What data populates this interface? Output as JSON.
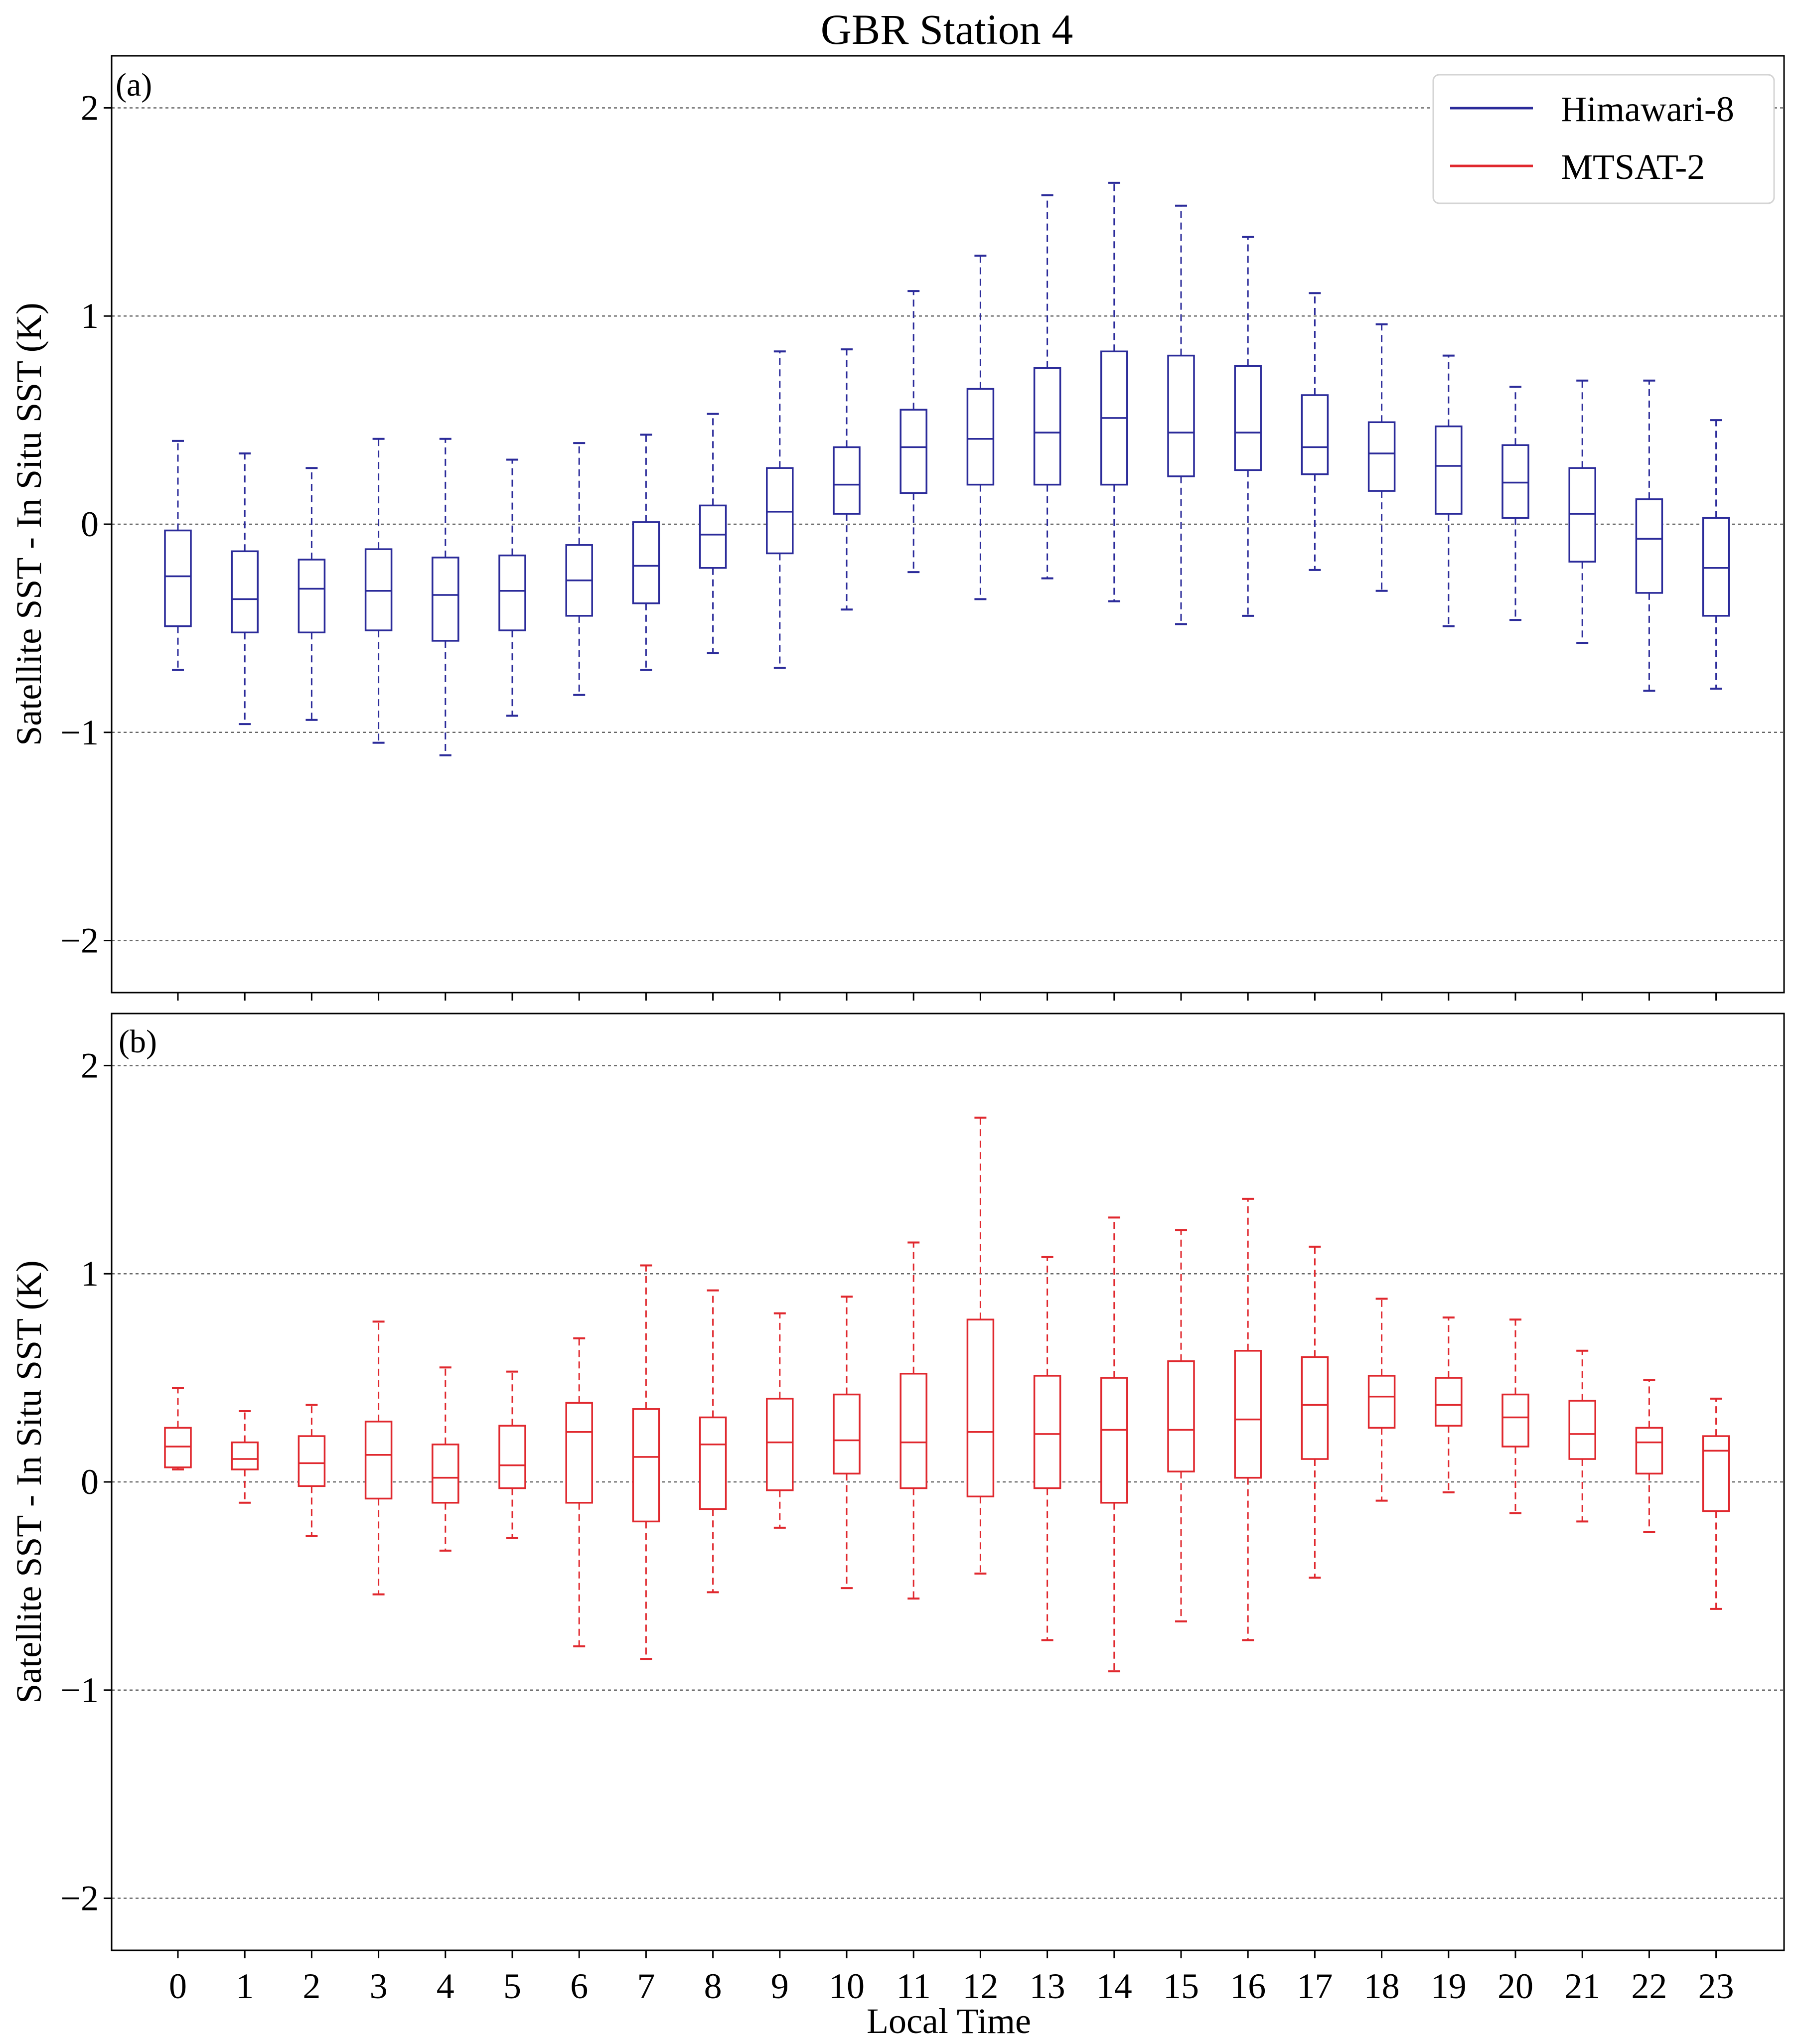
{
  "chart_data": {
    "type": "boxplot",
    "title": "GBR Station 4",
    "xlabel": "Local Time",
    "ylabel": "Satellite SST - In Situ SST (K)",
    "ylim": [
      -2.25,
      2.25
    ],
    "yticks": [
      -2,
      -1,
      0,
      1,
      2
    ],
    "ytick_labels": [
      "−2",
      "−1",
      "0",
      "1",
      "2"
    ],
    "grid": "horizontal dashed",
    "categories": [
      "0",
      "1",
      "2",
      "3",
      "4",
      "5",
      "6",
      "7",
      "8",
      "9",
      "10",
      "11",
      "12",
      "13",
      "14",
      "15",
      "16",
      "17",
      "18",
      "19",
      "20",
      "21",
      "22",
      "23"
    ],
    "legend": {
      "placement": "top-right",
      "entries": [
        {
          "name": "Himawari-8",
          "color": "#2b2b9a"
        },
        {
          "name": "MTSAT-2",
          "color": "#e0282e"
        }
      ]
    },
    "panels": [
      {
        "label": "(a)",
        "series": "Himawari-8",
        "color": "#2b2b9a",
        "boxes": [
          {
            "whislo": -0.7,
            "q1": -0.49,
            "med": -0.25,
            "q3": -0.03,
            "whishi": 0.4
          },
          {
            "whislo": -0.96,
            "q1": -0.52,
            "med": -0.36,
            "q3": -0.13,
            "whishi": 0.34
          },
          {
            "whislo": -0.94,
            "q1": -0.52,
            "med": -0.31,
            "q3": -0.17,
            "whishi": 0.27
          },
          {
            "whislo": -1.05,
            "q1": -0.51,
            "med": -0.32,
            "q3": -0.12,
            "whishi": 0.41
          },
          {
            "whislo": -1.11,
            "q1": -0.56,
            "med": -0.34,
            "q3": -0.16,
            "whishi": 0.41
          },
          {
            "whislo": -0.92,
            "q1": -0.51,
            "med": -0.32,
            "q3": -0.15,
            "whishi": 0.31
          },
          {
            "whislo": -0.82,
            "q1": -0.44,
            "med": -0.27,
            "q3": -0.1,
            "whishi": 0.39
          },
          {
            "whislo": -0.7,
            "q1": -0.38,
            "med": -0.2,
            "q3": 0.01,
            "whishi": 0.43
          },
          {
            "whislo": -0.62,
            "q1": -0.21,
            "med": -0.05,
            "q3": 0.09,
            "whishi": 0.53
          },
          {
            "whislo": -0.69,
            "q1": -0.14,
            "med": 0.06,
            "q3": 0.27,
            "whishi": 0.83
          },
          {
            "whislo": -0.41,
            "q1": 0.05,
            "med": 0.19,
            "q3": 0.37,
            "whishi": 0.84
          },
          {
            "whislo": -0.23,
            "q1": 0.15,
            "med": 0.37,
            "q3": 0.55,
            "whishi": 1.12
          },
          {
            "whislo": -0.36,
            "q1": 0.19,
            "med": 0.41,
            "q3": 0.65,
            "whishi": 1.29
          },
          {
            "whislo": -0.26,
            "q1": 0.19,
            "med": 0.44,
            "q3": 0.75,
            "whishi": 1.58
          },
          {
            "whislo": -0.37,
            "q1": 0.19,
            "med": 0.51,
            "q3": 0.83,
            "whishi": 1.64
          },
          {
            "whislo": -0.48,
            "q1": 0.23,
            "med": 0.44,
            "q3": 0.81,
            "whishi": 1.53
          },
          {
            "whislo": -0.44,
            "q1": 0.26,
            "med": 0.44,
            "q3": 0.76,
            "whishi": 1.38
          },
          {
            "whislo": -0.22,
            "q1": 0.24,
            "med": 0.37,
            "q3": 0.62,
            "whishi": 1.11
          },
          {
            "whislo": -0.32,
            "q1": 0.16,
            "med": 0.34,
            "q3": 0.49,
            "whishi": 0.96
          },
          {
            "whislo": -0.49,
            "q1": 0.05,
            "med": 0.28,
            "q3": 0.47,
            "whishi": 0.81
          },
          {
            "whislo": -0.46,
            "q1": 0.03,
            "med": 0.2,
            "q3": 0.38,
            "whishi": 0.66
          },
          {
            "whislo": -0.57,
            "q1": -0.18,
            "med": 0.05,
            "q3": 0.27,
            "whishi": 0.69
          },
          {
            "whislo": -0.8,
            "q1": -0.33,
            "med": -0.07,
            "q3": 0.12,
            "whishi": 0.69
          },
          {
            "whislo": -0.79,
            "q1": -0.44,
            "med": -0.21,
            "q3": 0.03,
            "whishi": 0.5
          }
        ]
      },
      {
        "label": "(b)",
        "series": "MTSAT-2",
        "color": "#e0282e",
        "boxes": [
          {
            "whislo": 0.06,
            "q1": 0.07,
            "med": 0.17,
            "q3": 0.26,
            "whishi": 0.45
          },
          {
            "whislo": -0.1,
            "q1": 0.06,
            "med": 0.11,
            "q3": 0.19,
            "whishi": 0.34
          },
          {
            "whislo": -0.26,
            "q1": -0.02,
            "med": 0.09,
            "q3": 0.22,
            "whishi": 0.37
          },
          {
            "whislo": -0.54,
            "q1": -0.08,
            "med": 0.13,
            "q3": 0.29,
            "whishi": 0.77
          },
          {
            "whislo": -0.33,
            "q1": -0.1,
            "med": 0.02,
            "q3": 0.18,
            "whishi": 0.55
          },
          {
            "whislo": -0.27,
            "q1": -0.03,
            "med": 0.08,
            "q3": 0.27,
            "whishi": 0.53
          },
          {
            "whislo": -0.79,
            "q1": -0.1,
            "med": 0.24,
            "q3": 0.38,
            "whishi": 0.69
          },
          {
            "whislo": -0.85,
            "q1": -0.19,
            "med": 0.12,
            "q3": 0.35,
            "whishi": 1.04
          },
          {
            "whislo": -0.53,
            "q1": -0.13,
            "med": 0.18,
            "q3": 0.31,
            "whishi": 0.92
          },
          {
            "whislo": -0.22,
            "q1": -0.04,
            "med": 0.19,
            "q3": 0.4,
            "whishi": 0.81
          },
          {
            "whislo": -0.51,
            "q1": 0.04,
            "med": 0.2,
            "q3": 0.42,
            "whishi": 0.89
          },
          {
            "whislo": -0.56,
            "q1": -0.03,
            "med": 0.19,
            "q3": 0.52,
            "whishi": 1.15
          },
          {
            "whislo": -0.44,
            "q1": -0.07,
            "med": 0.24,
            "q3": 0.78,
            "whishi": 1.75
          },
          {
            "whislo": -0.76,
            "q1": -0.03,
            "med": 0.23,
            "q3": 0.51,
            "whishi": 1.08
          },
          {
            "whislo": -0.91,
            "q1": -0.1,
            "med": 0.25,
            "q3": 0.5,
            "whishi": 1.27
          },
          {
            "whislo": -0.67,
            "q1": 0.05,
            "med": 0.25,
            "q3": 0.58,
            "whishi": 1.21
          },
          {
            "whislo": -0.76,
            "q1": 0.02,
            "med": 0.3,
            "q3": 0.63,
            "whishi": 1.36
          },
          {
            "whislo": -0.46,
            "q1": 0.11,
            "med": 0.37,
            "q3": 0.6,
            "whishi": 1.13
          },
          {
            "whislo": -0.09,
            "q1": 0.26,
            "med": 0.41,
            "q3": 0.51,
            "whishi": 0.88
          },
          {
            "whislo": -0.05,
            "q1": 0.27,
            "med": 0.37,
            "q3": 0.5,
            "whishi": 0.79
          },
          {
            "whislo": -0.15,
            "q1": 0.17,
            "med": 0.31,
            "q3": 0.42,
            "whishi": 0.78
          },
          {
            "whislo": -0.19,
            "q1": 0.11,
            "med": 0.23,
            "q3": 0.39,
            "whishi": 0.63
          },
          {
            "whislo": -0.24,
            "q1": 0.04,
            "med": 0.19,
            "q3": 0.26,
            "whishi": 0.49
          },
          {
            "whislo": -0.61,
            "q1": -0.14,
            "med": 0.15,
            "q3": 0.22,
            "whishi": 0.4
          }
        ]
      }
    ]
  }
}
